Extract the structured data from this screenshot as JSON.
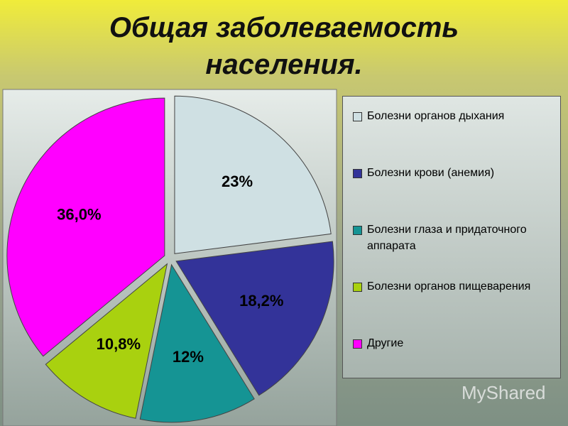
{
  "chart_data": {
    "type": "pie",
    "title": "Общая заболеваемость населения.",
    "categories": [
      "Болезни органов дыхания",
      "Болезни крови (анемия)",
      "Болезни глаза и придаточного аппарата",
      "Болезни органов пищеварения",
      "Другие"
    ],
    "values": [
      23,
      18.2,
      12,
      10.8,
      36.0
    ],
    "value_labels": [
      "23%",
      "18,2%",
      "12%",
      "10,8%",
      "36,0%"
    ],
    "colors": [
      "#cfe0e3",
      "#333399",
      "#159494",
      "#a9d10f",
      "#ff00ff"
    ]
  },
  "watermark": "MyShared"
}
